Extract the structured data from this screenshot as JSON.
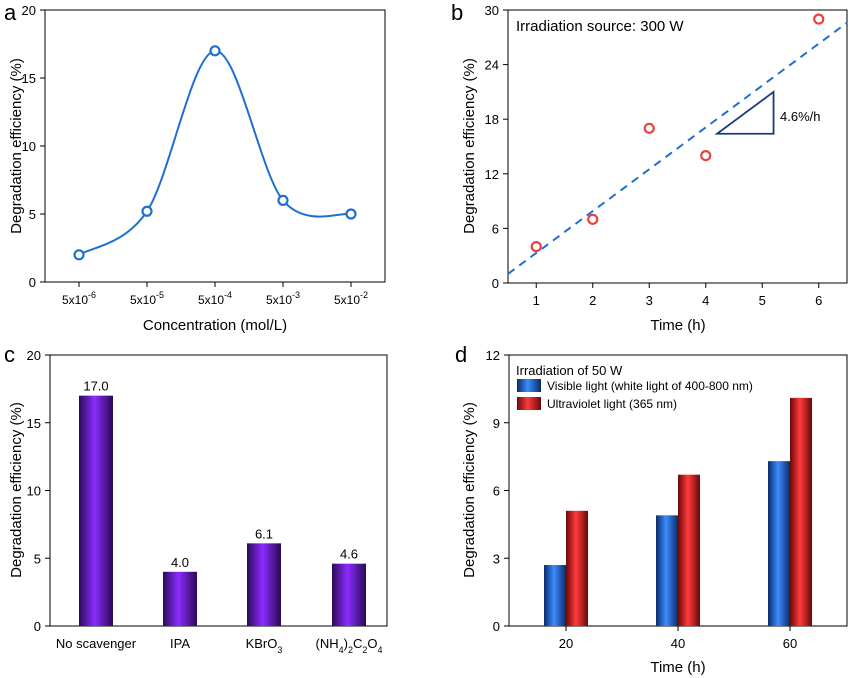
{
  "panels": {
    "a": {
      "letter": "a"
    },
    "b": {
      "letter": "b"
    },
    "c": {
      "letter": "c"
    },
    "d": {
      "letter": "d"
    }
  },
  "chart_data": [
    {
      "id": "a",
      "type": "line",
      "xlabel": "Concentration (mol/L)",
      "ylabel": "Degradation efficiency (%)",
      "ylim": [
        0,
        20
      ],
      "yticks": [
        "0",
        "5",
        "10",
        "15",
        "20"
      ],
      "categories": [
        {
          "base": "5x10",
          "exp": "-6"
        },
        {
          "base": "5x10",
          "exp": "-5"
        },
        {
          "base": "5x10",
          "exp": "-4"
        },
        {
          "base": "5x10",
          "exp": "-3"
        },
        {
          "base": "5x10",
          "exp": "-2"
        }
      ],
      "values": [
        2.0,
        5.2,
        17.0,
        6.0,
        5.0
      ],
      "color": "#1f6fd1",
      "smoothed": true
    },
    {
      "id": "b",
      "type": "scatter",
      "annotation": "Irradiation source: 300 W",
      "slope_label": "4.6%/h",
      "xlabel": "Time (h)",
      "ylabel": "Degradation efficiency (%)",
      "xlim": [
        0.5,
        6.5
      ],
      "ylim": [
        0,
        30
      ],
      "xticks": [
        "1",
        "2",
        "3",
        "4",
        "5",
        "6"
      ],
      "yticks": [
        "0",
        "6",
        "12",
        "18",
        "24",
        "30"
      ],
      "x": [
        1,
        2,
        3,
        4,
        6
      ],
      "y": [
        4.0,
        7.0,
        17.0,
        14.0,
        29.0
      ],
      "fit_line": {
        "x": [
          0.5,
          6.5
        ],
        "y": [
          1.0,
          28.6
        ]
      },
      "slope_triangle": {
        "x": [
          4.2,
          5.2
        ],
        "y": [
          16.4,
          21.0
        ]
      },
      "marker_color": "#e8423f",
      "line_color": "#1f6fd1",
      "triangle_color": "#1c3a7a"
    },
    {
      "id": "c",
      "type": "bar",
      "ylabel": "Degradation efficiency (%)",
      "ylim": [
        0,
        20
      ],
      "yticks": [
        "0",
        "5",
        "10",
        "15",
        "20"
      ],
      "categories": [
        "No scavenger",
        "IPA",
        "KBrO3",
        "(NH4)2C2O4"
      ],
      "values": [
        17.0,
        4.0,
        6.1,
        4.6
      ],
      "data_labels": [
        "17.0",
        "4.0",
        "6.1",
        "4.6"
      ],
      "color": "#7a1fe0"
    },
    {
      "id": "d",
      "type": "bar",
      "legend_title": "Irradiation of 50 W",
      "legend_position": "top-left",
      "xlabel": "Time (h)",
      "ylabel": "Degradation efficiency (%)",
      "ylim": [
        0,
        12
      ],
      "yticks": [
        "0",
        "3",
        "6",
        "9",
        "12"
      ],
      "categories": [
        "20",
        "40",
        "60"
      ],
      "series": [
        {
          "name": "Visible light (white light of 400-800 nm)",
          "values": [
            2.7,
            4.9,
            7.3
          ],
          "color": "#1f6fd1"
        },
        {
          "name": "Ultraviolet light (365 nm)",
          "values": [
            5.1,
            6.7,
            10.1
          ],
          "color": "#e03030"
        }
      ]
    }
  ]
}
